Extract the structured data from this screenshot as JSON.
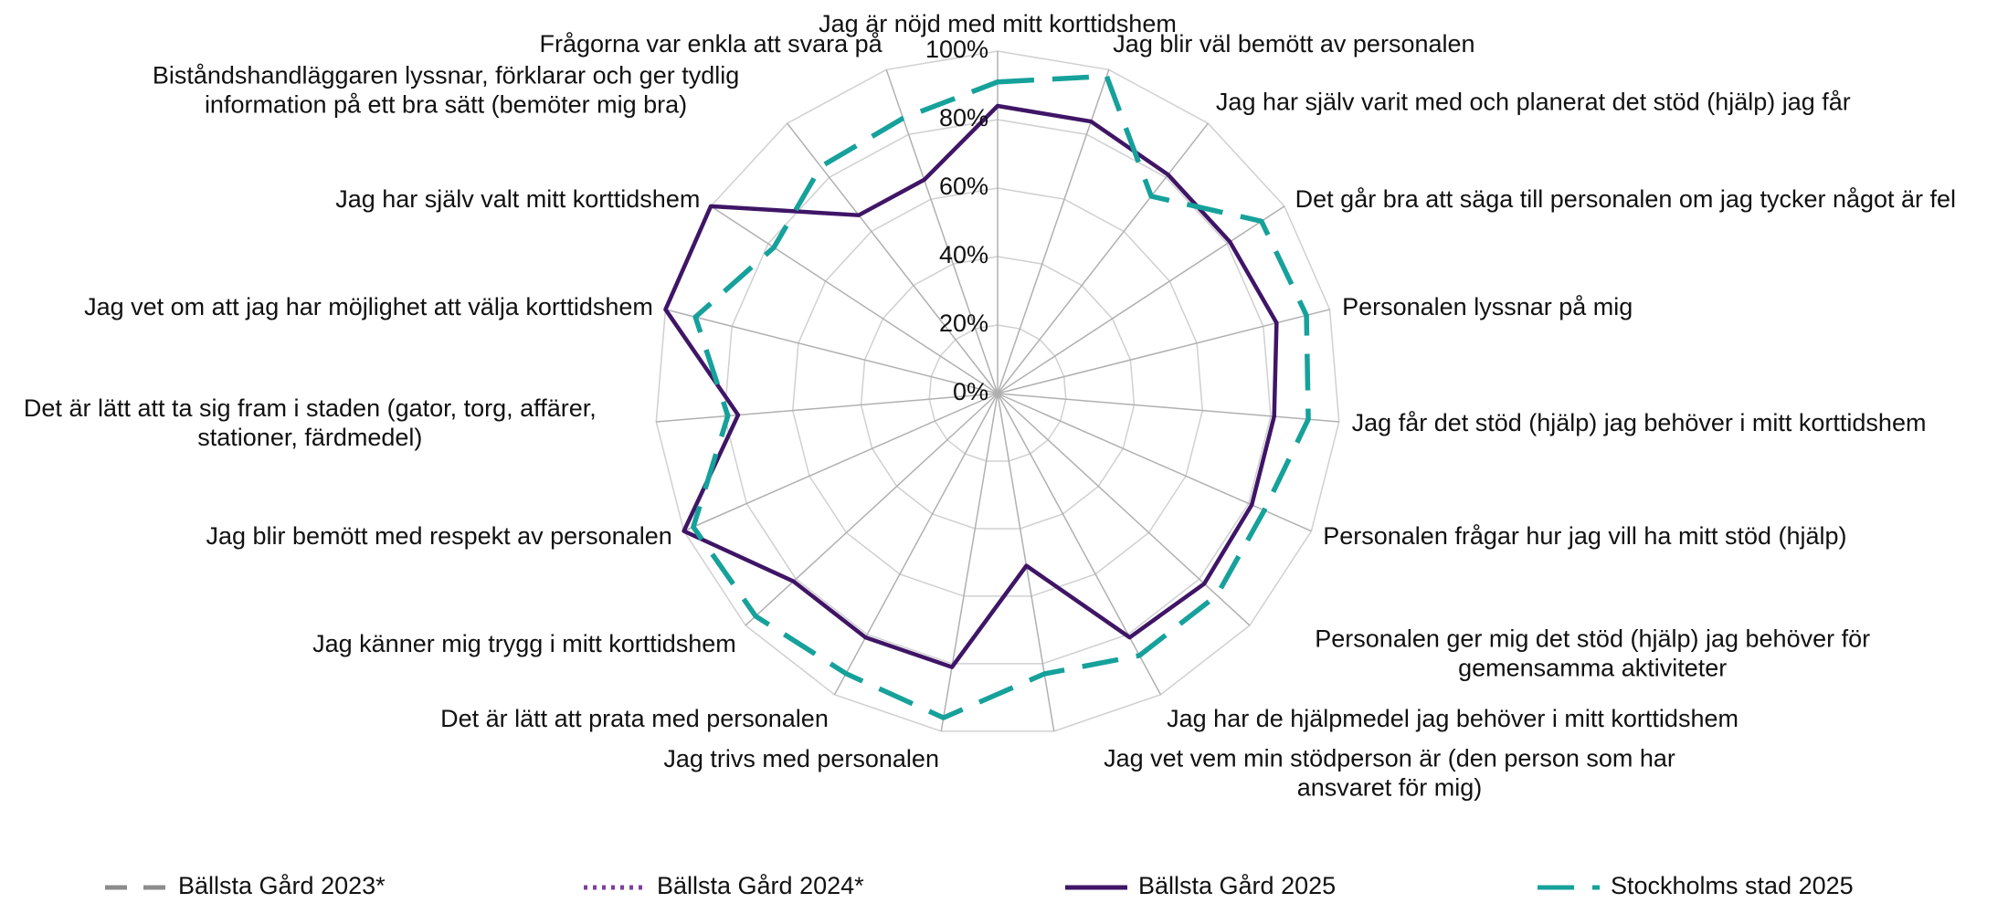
{
  "chart_data": {
    "type": "radar",
    "categories": [
      "Jag är nöjd med mitt korttidshem",
      "Jag blir väl bemött av personalen",
      "Jag har själv varit med och planerat det stöd (hjälp) jag får",
      "Det går bra att säga till personalen om jag tycker något är fel",
      "Personalen lyssnar på mig",
      "Jag får det stöd (hjälp) jag behöver i mitt korttidshem",
      "Personalen frågar hur jag vill ha mitt stöd (hjälp)",
      "Personalen ger mig det stöd (hjälp) jag behöver för gemensamma aktiviteter",
      "Jag har de hjälpmedel jag behöver i mitt korttidshem",
      "Jag vet vem min stödperson är (den person som har ansvaret för mig)",
      "Jag trivs med personalen",
      "Det är lätt att prata med personalen",
      "Jag känner mig trygg i mitt korttidshem",
      "Jag blir bemött med respekt av personalen",
      "Det är lätt att ta sig fram i staden (gator, torg, affärer, stationer, färdmedel)",
      "Jag vet om att jag har möjlighet att välja korttidshem",
      "Jag har själv valt mitt korttidshem",
      "Biståndshandläggaren lyssnar, förklarar och ger tydlig information på ett bra sätt (bemöter mig bra)",
      "Frågorna var enkla att svara på"
    ],
    "series": [
      {
        "name": "Bällsta Gård 2023*",
        "color": "#8c8c8c",
        "dash": "dashed",
        "values": [
          null,
          null,
          null,
          null,
          null,
          null,
          null,
          null,
          null,
          null,
          null,
          null,
          null,
          null,
          null,
          null,
          null,
          null,
          null
        ]
      },
      {
        "name": "Bällsta Gård 2024*",
        "color": "#7b3f9e",
        "dash": "dotted",
        "values": [
          null,
          null,
          null,
          null,
          null,
          null,
          null,
          null,
          null,
          null,
          null,
          null,
          null,
          null,
          null,
          null,
          null,
          null,
          null
        ]
      },
      {
        "name": "Bällsta Gård 2025",
        "color": "#3f1566",
        "dash": "solid",
        "values": [
          84,
          84,
          81,
          81,
          84,
          81,
          81,
          82,
          81,
          51,
          81,
          81,
          81,
          100,
          76,
          100,
          100,
          66,
          66
        ]
      },
      {
        "name": "Stockholms stad 2025",
        "color": "#16a19b",
        "dash": "longdash",
        "values": [
          91,
          98,
          73,
          92,
          93,
          91,
          85,
          87,
          87,
          83,
          96,
          93,
          96,
          97,
          79,
          91,
          78,
          84,
          85
        ]
      }
    ],
    "ylim": [
      0,
      100
    ],
    "yticks": [
      {
        "value": 0,
        "label": "0%"
      },
      {
        "value": 20,
        "label": "20%"
      },
      {
        "value": 40,
        "label": "40%"
      },
      {
        "value": 60,
        "label": "60%"
      },
      {
        "value": 80,
        "label": "80%"
      },
      {
        "value": 100,
        "label": "100%"
      }
    ],
    "grid": true,
    "legend": "bottom"
  }
}
